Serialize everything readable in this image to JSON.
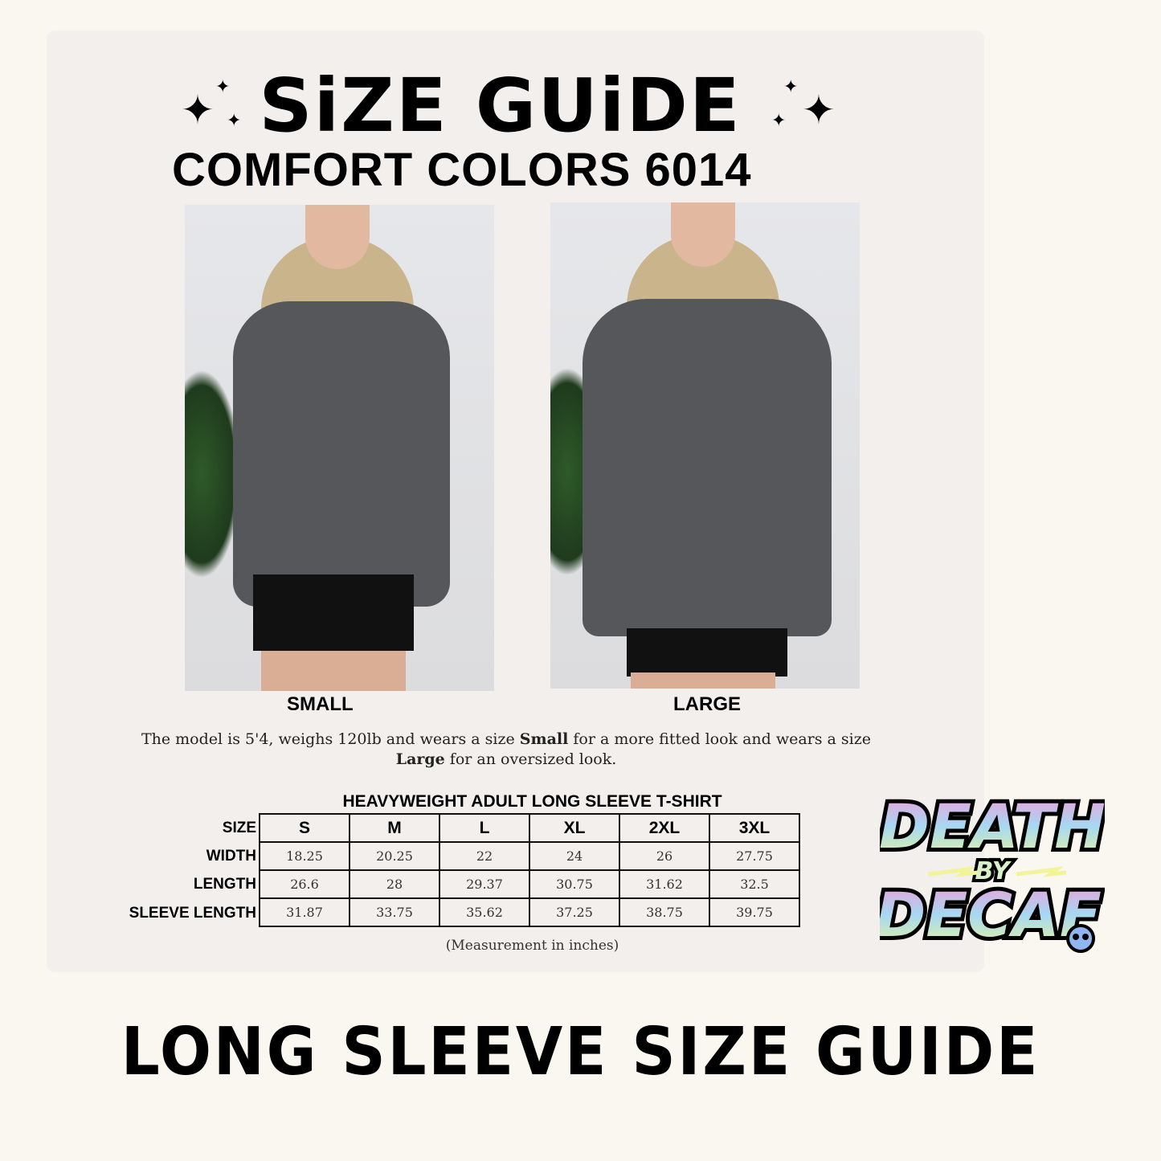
{
  "header": {
    "title": "SiZE GUiDE",
    "subtitle": "COMFORT COLORS 6014",
    "decoration_icon": "sparkle-icon"
  },
  "photos": [
    {
      "label": "SMALL"
    },
    {
      "label": "LARGE"
    }
  ],
  "description": {
    "part1": "The model is 5'4, weighs 120lb and wears a size ",
    "bold1": "Small",
    "part2": " for a more fitted look and wears a size ",
    "bold2": "Large",
    "part3": " for an oversized look."
  },
  "table": {
    "title": "HEAVYWEIGHT ADULT LONG SLEEVE T-SHIRT",
    "row_labels": [
      "SIZE",
      "WIDTH",
      "LENGTH",
      "SLEEVE LENGTH"
    ],
    "sizes": [
      "S",
      "M",
      "L",
      "XL",
      "2XL",
      "3XL"
    ],
    "width": [
      "18.25",
      "20.25",
      "22",
      "24",
      "26",
      "27.75"
    ],
    "length": [
      "26.6",
      "28",
      "29.37",
      "30.75",
      "31.62",
      "32.5"
    ],
    "sleeve_length": [
      "31.87",
      "33.75",
      "35.62",
      "37.25",
      "38.75",
      "39.75"
    ],
    "note": "(Measurement in inches)"
  },
  "logo": {
    "line1": "DEATH",
    "line2": "BY",
    "line3": "DECAF",
    "colors": [
      "#f59ad6",
      "#a6d8f2",
      "#e9f59a"
    ]
  },
  "footer": {
    "title": "LONG SLEEVE SIZE GUIDE"
  },
  "colors": {
    "background": "#faf7f0",
    "card": "#f3efed",
    "shirt": "#56575a"
  }
}
